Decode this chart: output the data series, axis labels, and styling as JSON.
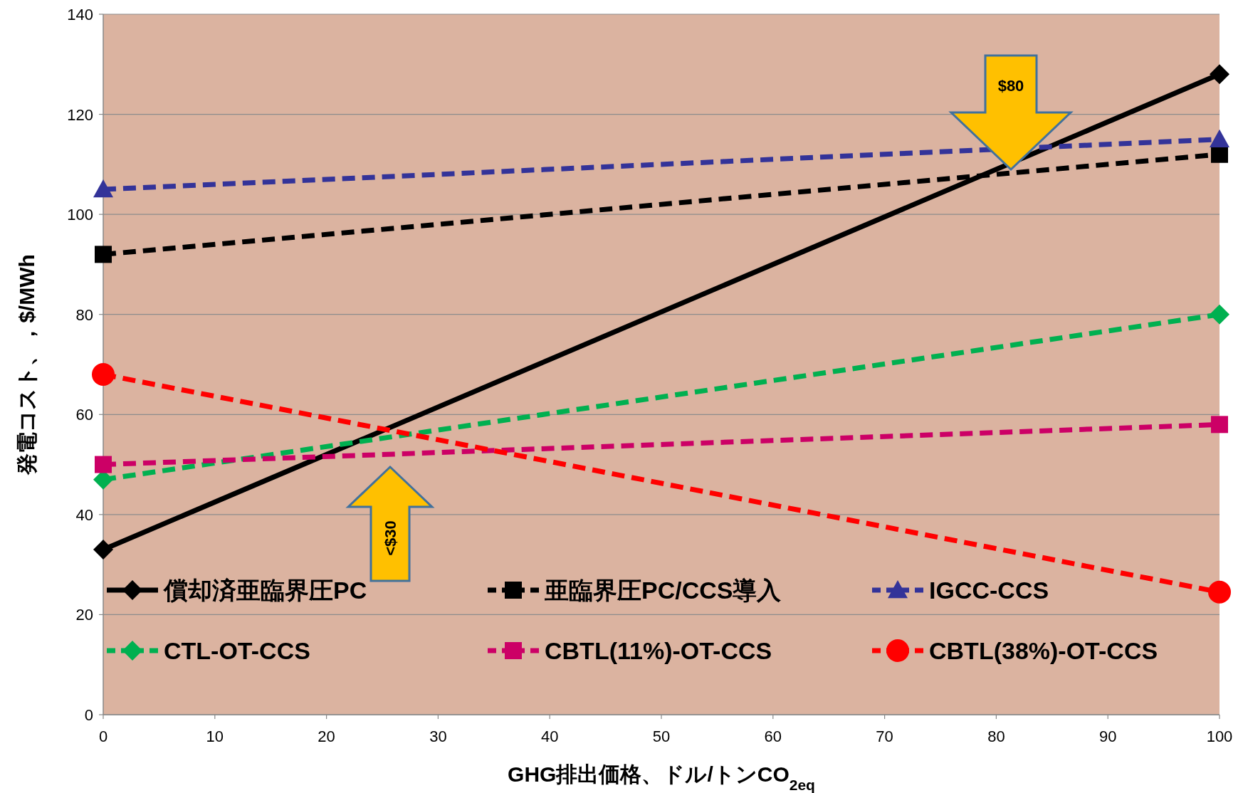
{
  "chart_data": {
    "type": "line",
    "xlabel": "GHG排出価格、ドル/トンCO$_{2eq}$",
    "ylabel": "発電コスト、，$/MWh",
    "xlim": [
      0,
      100
    ],
    "ylim": [
      0,
      140
    ],
    "xticks": [
      0,
      10,
      20,
      30,
      40,
      50,
      60,
      70,
      80,
      90,
      100
    ],
    "yticks": [
      0,
      20,
      40,
      60,
      80,
      100,
      120,
      140
    ],
    "grid": "y",
    "legend": "bottom",
    "x": [
      0,
      100
    ],
    "series": [
      {
        "name": "償却済亜臨界圧PC",
        "color": "#000000",
        "values": [
          33,
          128
        ],
        "marker": "diamond",
        "line_style": "solid"
      },
      {
        "name": "亜臨界圧PC/CCS導入",
        "color": "#000000",
        "values": [
          92,
          112
        ],
        "marker": "square",
        "line_style": "dashed"
      },
      {
        "name": "IGCC-CCS",
        "color": "#333399",
        "values": [
          105,
          115
        ],
        "marker": "triangle",
        "line_style": "dashed"
      },
      {
        "name": "CTL-OT-CCS",
        "color": "#00b050",
        "values": [
          47,
          80
        ],
        "marker": "diamond",
        "line_style": "dashed"
      },
      {
        "name": "CBTL(11%)-OT-CCS",
        "color": "#cc0066",
        "values": [
          50,
          58
        ],
        "marker": "square",
        "line_style": "dashed"
      },
      {
        "name": "CBTL(38%)-OT-CCS",
        "color": "#ff0000",
        "values": [
          68,
          24.5
        ],
        "marker": "circle",
        "line_style": "dashed"
      }
    ],
    "annotations": [
      "$80",
      "<$30"
    ]
  }
}
